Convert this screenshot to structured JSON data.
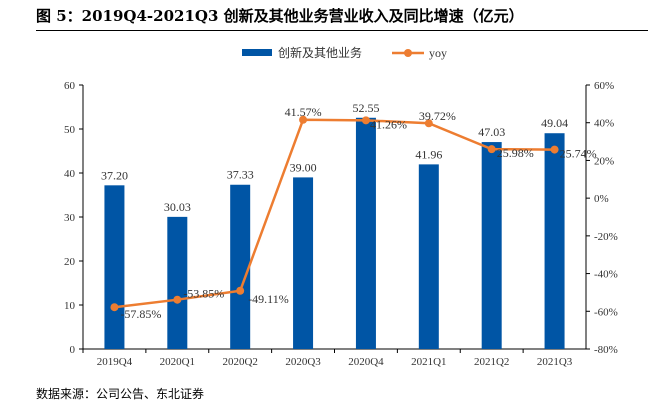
{
  "title": "图 5：2019Q4-2021Q3 创新及其他业务营业收入及同比增速（亿元）",
  "source": "数据来源：公司公告、东北证券",
  "colors": {
    "bar": "#0055A5",
    "line": "#ED7D31"
  },
  "chart_data": {
    "type": "bar",
    "title": "2019Q4-2021Q3 创新及其他业务营业收入及同比增速（亿元）",
    "categories": [
      "2019Q4",
      "2020Q1",
      "2020Q2",
      "2020Q3",
      "2020Q4",
      "2021Q1",
      "2021Q2",
      "2021Q3"
    ],
    "series": [
      {
        "name": "创新及其他业务",
        "type": "bar",
        "axis": "left",
        "values": [
          37.2,
          30.03,
          37.33,
          39.0,
          52.55,
          41.96,
          47.03,
          49.04
        ],
        "labels": [
          "37.20",
          "30.03",
          "37.33",
          "39.00",
          "52.55",
          "41.96",
          "47.03",
          "49.04"
        ]
      },
      {
        "name": "yoy",
        "type": "line",
        "axis": "right",
        "values": [
          -57.85,
          -53.85,
          -49.11,
          41.57,
          41.26,
          39.72,
          25.98,
          25.74
        ],
        "labels": [
          "-57.85%",
          "-53.85%",
          "-49.11%",
          "41.57%",
          "41.26%",
          "39.72%",
          "25.98%",
          "25.74%"
        ]
      }
    ],
    "ylim": [
      0,
      60
    ],
    "yticks": [
      "0",
      "10",
      "20",
      "30",
      "40",
      "50",
      "60"
    ],
    "y2lim": [
      -80,
      60
    ],
    "y2ticks": [
      "-80%",
      "-60%",
      "-40%",
      "-20%",
      "0%",
      "20%",
      "40%",
      "60%"
    ],
    "legend": "top-center"
  }
}
